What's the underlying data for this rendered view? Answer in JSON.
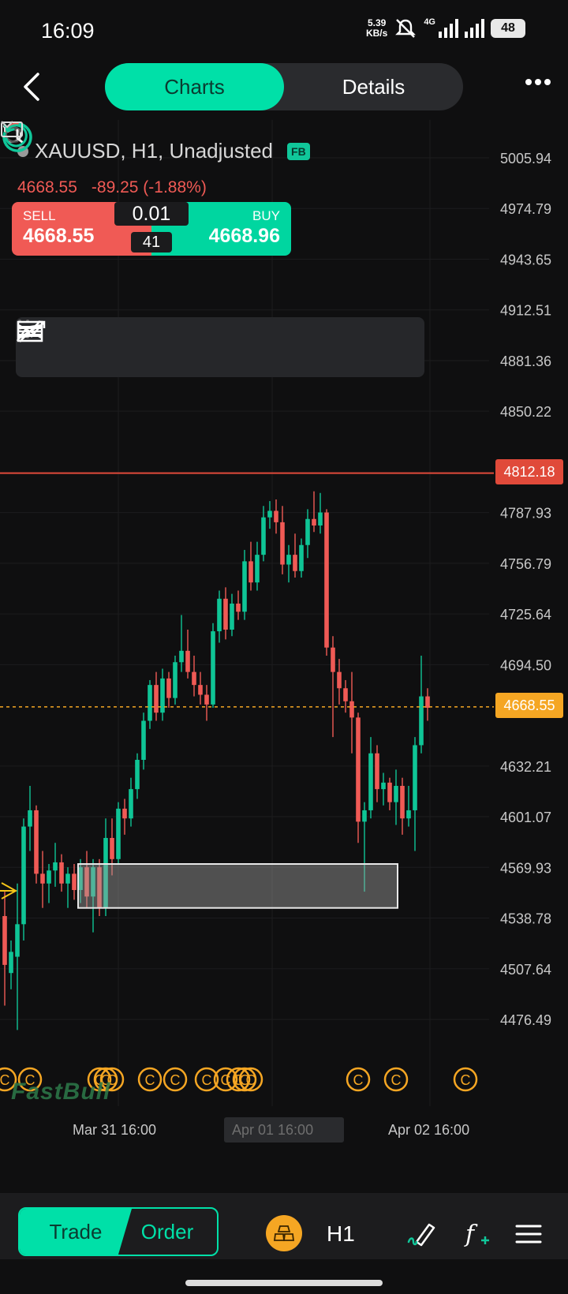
{
  "status_bar": {
    "time": "16:09",
    "net_speed_value": "5.39",
    "net_speed_unit": "KB/s",
    "network": "4G",
    "battery": "48",
    "icons": [
      "mute-icon",
      "signal-icon",
      "battery-icon"
    ]
  },
  "header": {
    "tabs": [
      {
        "label": "Charts",
        "active": true
      },
      {
        "label": "Details",
        "active": false
      }
    ],
    "icons": [
      "back-icon",
      "more-icon"
    ]
  },
  "chart_header": {
    "symbol": "XAUUSD, H1, Unadjusted",
    "badge": "FB",
    "last_price": "4668.55",
    "change": "-89.25 (-1.88%)",
    "icons": [
      "undo-icon",
      "redo-icon",
      "countdown-timer-icon"
    ]
  },
  "trade_panel": {
    "sell_label": "SELL",
    "sell_price": "4668.55",
    "buy_label": "BUY",
    "buy_price": "4668.96",
    "lot": "0.01",
    "spread": "41"
  },
  "draw_tools": [
    "drag-handle-icon",
    "horizontal-line-icon",
    "trend-line-icon",
    "rectangle-icon",
    "channel-icon",
    "parallel-channel-icon",
    "fib-channel-icon",
    "path-icon"
  ],
  "price_axis": [
    "5005.94",
    "4974.79",
    "4943.65",
    "4912.51",
    "4881.36",
    "4850.22",
    "4787.93",
    "4756.79",
    "4725.64",
    "4694.50",
    "4632.21",
    "4601.07",
    "4569.93",
    "4538.78",
    "4507.64",
    "4476.49"
  ],
  "price_tags": {
    "alert_line": "4812.18",
    "current": "4668.55"
  },
  "time_axis": {
    "labels": [
      "Mar 31 16:00",
      "Apr 01 16:00",
      "Apr 02 16:00"
    ]
  },
  "watermark": "FastBull",
  "colors": {
    "accent": "#00e0a8",
    "bull": "#0fc596",
    "bear": "#f05a55",
    "alert_line": "#e04a3a",
    "current_tag": "#f5a623",
    "event_marker": "#f5a623"
  },
  "chart_data": {
    "type": "candlestick",
    "symbol": "XAUUSD",
    "timeframe": "H1",
    "ylim": [
      4456,
      5020
    ],
    "x": [
      "Mar 31 16:00",
      "Apr 01 16:00",
      "Apr 02 16:00"
    ],
    "horizontal_lines": [
      {
        "value": 4812.18,
        "style": "solid",
        "color": "#e04a3a"
      },
      {
        "value": 4668.55,
        "style": "dotted",
        "color": "#f5a623"
      }
    ],
    "rectangle": {
      "y_top": 4572,
      "y_bottom": 4545
    },
    "candles": [
      {
        "o": 4540,
        "h": 4555,
        "l": 4485,
        "c": 4510
      },
      {
        "o": 4505,
        "h": 4525,
        "l": 4495,
        "c": 4518
      },
      {
        "o": 4515,
        "h": 4560,
        "l": 4470,
        "c": 4535
      },
      {
        "o": 4535,
        "h": 4600,
        "l": 4525,
        "c": 4595
      },
      {
        "o": 4595,
        "h": 4620,
        "l": 4580,
        "c": 4605
      },
      {
        "o": 4605,
        "h": 4608,
        "l": 4560,
        "c": 4566
      },
      {
        "o": 4566,
        "h": 4580,
        "l": 4545,
        "c": 4560
      },
      {
        "o": 4560,
        "h": 4572,
        "l": 4548,
        "c": 4568
      },
      {
        "o": 4568,
        "h": 4585,
        "l": 4558,
        "c": 4573
      },
      {
        "o": 4573,
        "h": 4578,
        "l": 4555,
        "c": 4560
      },
      {
        "o": 4560,
        "h": 4570,
        "l": 4545,
        "c": 4566
      },
      {
        "o": 4566,
        "h": 4572,
        "l": 4550,
        "c": 4556
      },
      {
        "o": 4556,
        "h": 4575,
        "l": 4548,
        "c": 4570
      },
      {
        "o": 4570,
        "h": 4580,
        "l": 4545,
        "c": 4552
      },
      {
        "o": 4552,
        "h": 4575,
        "l": 4530,
        "c": 4570
      },
      {
        "o": 4570,
        "h": 4575,
        "l": 4540,
        "c": 4545
      },
      {
        "o": 4545,
        "h": 4600,
        "l": 4540,
        "c": 4588
      },
      {
        "o": 4588,
        "h": 4600,
        "l": 4565,
        "c": 4575
      },
      {
        "o": 4575,
        "h": 4610,
        "l": 4572,
        "c": 4606
      },
      {
        "o": 4606,
        "h": 4612,
        "l": 4590,
        "c": 4600
      },
      {
        "o": 4600,
        "h": 4625,
        "l": 4595,
        "c": 4618
      },
      {
        "o": 4618,
        "h": 4640,
        "l": 4612,
        "c": 4636
      },
      {
        "o": 4636,
        "h": 4665,
        "l": 4630,
        "c": 4660
      },
      {
        "o": 4660,
        "h": 4685,
        "l": 4655,
        "c": 4682
      },
      {
        "o": 4682,
        "h": 4690,
        "l": 4660,
        "c": 4665
      },
      {
        "o": 4665,
        "h": 4692,
        "l": 4660,
        "c": 4686
      },
      {
        "o": 4686,
        "h": 4690,
        "l": 4668,
        "c": 4674
      },
      {
        "o": 4674,
        "h": 4700,
        "l": 4670,
        "c": 4696
      },
      {
        "o": 4696,
        "h": 4725,
        "l": 4690,
        "c": 4703
      },
      {
        "o": 4703,
        "h": 4716,
        "l": 4686,
        "c": 4690
      },
      {
        "o": 4690,
        "h": 4700,
        "l": 4675,
        "c": 4682
      },
      {
        "o": 4682,
        "h": 4690,
        "l": 4670,
        "c": 4676
      },
      {
        "o": 4676,
        "h": 4682,
        "l": 4660,
        "c": 4670
      },
      {
        "o": 4670,
        "h": 4720,
        "l": 4668,
        "c": 4715
      },
      {
        "o": 4715,
        "h": 4740,
        "l": 4708,
        "c": 4735
      },
      {
        "o": 4735,
        "h": 4742,
        "l": 4710,
        "c": 4716
      },
      {
        "o": 4716,
        "h": 4738,
        "l": 4712,
        "c": 4732
      },
      {
        "o": 4732,
        "h": 4740,
        "l": 4722,
        "c": 4727
      },
      {
        "o": 4727,
        "h": 4765,
        "l": 4722,
        "c": 4758
      },
      {
        "o": 4758,
        "h": 4770,
        "l": 4740,
        "c": 4745
      },
      {
        "o": 4745,
        "h": 4770,
        "l": 4740,
        "c": 4762
      },
      {
        "o": 4762,
        "h": 4792,
        "l": 4758,
        "c": 4785
      },
      {
        "o": 4785,
        "h": 4795,
        "l": 4778,
        "c": 4789
      },
      {
        "o": 4789,
        "h": 4796,
        "l": 4775,
        "c": 4782
      },
      {
        "o": 4782,
        "h": 4792,
        "l": 4750,
        "c": 4756
      },
      {
        "o": 4756,
        "h": 4768,
        "l": 4745,
        "c": 4762
      },
      {
        "o": 4762,
        "h": 4775,
        "l": 4748,
        "c": 4752
      },
      {
        "o": 4752,
        "h": 4772,
        "l": 4748,
        "c": 4768
      },
      {
        "o": 4768,
        "h": 4790,
        "l": 4760,
        "c": 4784
      },
      {
        "o": 4784,
        "h": 4801,
        "l": 4776,
        "c": 4780
      },
      {
        "o": 4780,
        "h": 4800,
        "l": 4775,
        "c": 4788
      },
      {
        "o": 4788,
        "h": 4790,
        "l": 4700,
        "c": 4705
      },
      {
        "o": 4705,
        "h": 4712,
        "l": 4650,
        "c": 4690
      },
      {
        "o": 4690,
        "h": 4698,
        "l": 4670,
        "c": 4680
      },
      {
        "o": 4680,
        "h": 4685,
        "l": 4665,
        "c": 4672
      },
      {
        "o": 4672,
        "h": 4690,
        "l": 4640,
        "c": 4662
      },
      {
        "o": 4662,
        "h": 4665,
        "l": 4585,
        "c": 4598
      },
      {
        "o": 4598,
        "h": 4610,
        "l": 4555,
        "c": 4605
      },
      {
        "o": 4605,
        "h": 4650,
        "l": 4600,
        "c": 4640
      },
      {
        "o": 4640,
        "h": 4645,
        "l": 4610,
        "c": 4618
      },
      {
        "o": 4618,
        "h": 4628,
        "l": 4608,
        "c": 4622
      },
      {
        "o": 4622,
        "h": 4625,
        "l": 4605,
        "c": 4610
      },
      {
        "o": 4610,
        "h": 4630,
        "l": 4596,
        "c": 4620
      },
      {
        "o": 4620,
        "h": 4625,
        "l": 4590,
        "c": 4600
      },
      {
        "o": 4600,
        "h": 4620,
        "l": 4595,
        "c": 4605
      },
      {
        "o": 4605,
        "h": 4650,
        "l": 4580,
        "c": 4645
      },
      {
        "o": 4645,
        "h": 4700,
        "l": 4640,
        "c": 4675
      },
      {
        "o": 4675,
        "h": 4680,
        "l": 4660,
        "c": 4668
      }
    ],
    "event_markers": [
      {
        "index": 0
      },
      {
        "index": 4
      },
      {
        "index": 15
      },
      {
        "index": 16
      },
      {
        "index": 17
      },
      {
        "index": 23
      },
      {
        "index": 27
      },
      {
        "index": 32
      },
      {
        "index": 35
      },
      {
        "index": 37
      },
      {
        "index": 38
      },
      {
        "index": 39
      },
      {
        "index": 56
      },
      {
        "index": 62
      },
      {
        "index": 73
      }
    ]
  }
}
